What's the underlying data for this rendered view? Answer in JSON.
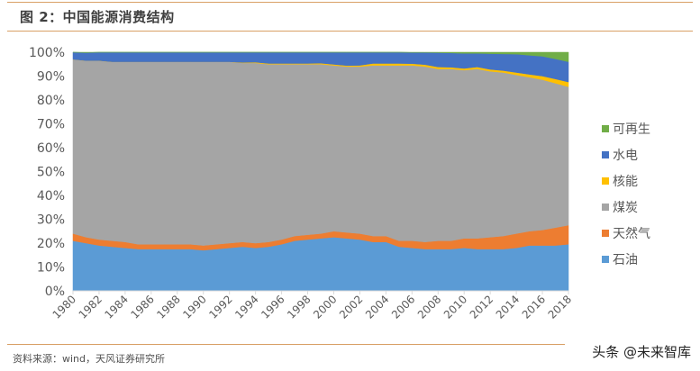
{
  "header": {
    "title": "图 2：中国能源消费结构"
  },
  "footer": {
    "source": "资料来源：wind，天风证券研究所",
    "watermark": "头条 @未来智库"
  },
  "legend": [
    {
      "label": "可再生",
      "color": "#70ad47"
    },
    {
      "label": "水电",
      "color": "#4472c4"
    },
    {
      "label": "核能",
      "color": "#ffc000"
    },
    {
      "label": "煤炭",
      "color": "#a5a5a5"
    },
    {
      "label": "天然气",
      "color": "#ed7d31"
    },
    {
      "label": "石油",
      "color": "#5b9bd5"
    }
  ],
  "chart_data": {
    "type": "area",
    "stacked": true,
    "percent_stacked": true,
    "title": "中国能源消费结构",
    "xlabel": "",
    "ylabel": "",
    "ylim": [
      0,
      100
    ],
    "y_ticks": [
      "0%",
      "10%",
      "20%",
      "30%",
      "40%",
      "50%",
      "60%",
      "70%",
      "80%",
      "90%",
      "100%"
    ],
    "x_tick_labels": [
      "1980",
      "1982",
      "1984",
      "1986",
      "1988",
      "1990",
      "1992",
      "1994",
      "1996",
      "1998",
      "2000",
      "2002",
      "2004",
      "2006",
      "2008",
      "2010",
      "2012",
      "2014",
      "2016",
      "2018"
    ],
    "legend_position": "right",
    "grid": false,
    "x": [
      1980,
      1981,
      1982,
      1983,
      1984,
      1985,
      1986,
      1987,
      1988,
      1989,
      1990,
      1991,
      1992,
      1993,
      1994,
      1995,
      1996,
      1997,
      1998,
      1999,
      2000,
      2001,
      2002,
      2003,
      2004,
      2005,
      2006,
      2007,
      2008,
      2009,
      2010,
      2011,
      2012,
      2013,
      2014,
      2015,
      2016,
      2017,
      2018
    ],
    "series": [
      {
        "name": "石油",
        "color": "#5b9bd5",
        "values": [
          21.0,
          20.0,
          19.0,
          18.5,
          18.0,
          17.5,
          17.5,
          17.5,
          17.5,
          17.5,
          17.0,
          17.5,
          18.0,
          18.5,
          18.0,
          18.5,
          19.5,
          21.0,
          21.5,
          22.0,
          22.5,
          22.0,
          21.5,
          20.5,
          20.5,
          18.5,
          18.0,
          17.5,
          17.5,
          17.5,
          18.0,
          17.5,
          17.5,
          17.5,
          18.0,
          19.0,
          19.0,
          19.0,
          19.5
        ]
      },
      {
        "name": "天然气",
        "color": "#ed7d31",
        "values": [
          3.0,
          2.5,
          2.5,
          2.5,
          2.5,
          2.0,
          2.0,
          2.0,
          2.0,
          2.0,
          2.0,
          2.0,
          2.0,
          2.0,
          2.0,
          2.0,
          2.0,
          2.0,
          2.0,
          2.0,
          2.5,
          2.5,
          2.5,
          2.5,
          2.5,
          2.5,
          3.0,
          3.0,
          3.5,
          3.5,
          4.0,
          4.5,
          5.0,
          5.5,
          6.0,
          6.0,
          6.5,
          7.5,
          8.0
        ]
      },
      {
        "name": "煤炭",
        "color": "#a5a5a5",
        "values": [
          73.0,
          74.0,
          75.0,
          75.0,
          75.5,
          76.5,
          76.5,
          76.5,
          76.5,
          76.5,
          77.0,
          76.5,
          76.0,
          75.0,
          75.5,
          74.5,
          73.5,
          72.0,
          71.5,
          71.0,
          69.5,
          69.5,
          70.0,
          71.5,
          71.5,
          73.5,
          73.5,
          73.5,
          72.0,
          72.0,
          70.5,
          71.0,
          69.5,
          68.5,
          66.5,
          64.5,
          63.0,
          60.5,
          58.0
        ]
      },
      {
        "name": "核能",
        "color": "#ffc000",
        "values": [
          0.0,
          0.0,
          0.0,
          0.0,
          0.0,
          0.0,
          0.0,
          0.0,
          0.0,
          0.0,
          0.0,
          0.0,
          0.0,
          0.2,
          0.3,
          0.3,
          0.3,
          0.3,
          0.3,
          0.4,
          0.4,
          0.4,
          0.5,
          0.8,
          0.8,
          0.8,
          0.7,
          0.8,
          0.8,
          0.7,
          0.7,
          0.8,
          0.8,
          0.8,
          1.0,
          1.2,
          1.5,
          1.8,
          2.0
        ]
      },
      {
        "name": "水电",
        "color": "#4472c4",
        "values": [
          3.0,
          3.3,
          3.5,
          4.0,
          4.0,
          4.0,
          4.0,
          4.0,
          4.0,
          4.0,
          4.0,
          4.0,
          4.0,
          4.3,
          4.2,
          4.7,
          4.7,
          4.7,
          4.7,
          4.6,
          5.1,
          5.6,
          5.5,
          4.7,
          4.7,
          4.7,
          4.7,
          5.1,
          6.0,
          6.0,
          6.3,
          5.7,
          6.6,
          7.0,
          7.7,
          8.0,
          8.3,
          8.4,
          8.5
        ]
      },
      {
        "name": "可再生",
        "color": "#70ad47",
        "values": [
          0.0,
          0.2,
          0.0,
          0.0,
          0.0,
          0.0,
          0.0,
          0.0,
          0.0,
          0.0,
          0.0,
          0.0,
          0.0,
          0.0,
          0.0,
          0.0,
          0.0,
          0.0,
          0.0,
          0.0,
          0.0,
          0.0,
          0.0,
          0.0,
          0.0,
          0.0,
          0.1,
          0.1,
          0.2,
          0.3,
          0.5,
          0.5,
          0.6,
          0.7,
          0.8,
          1.3,
          1.7,
          2.8,
          4.0
        ]
      }
    ]
  }
}
